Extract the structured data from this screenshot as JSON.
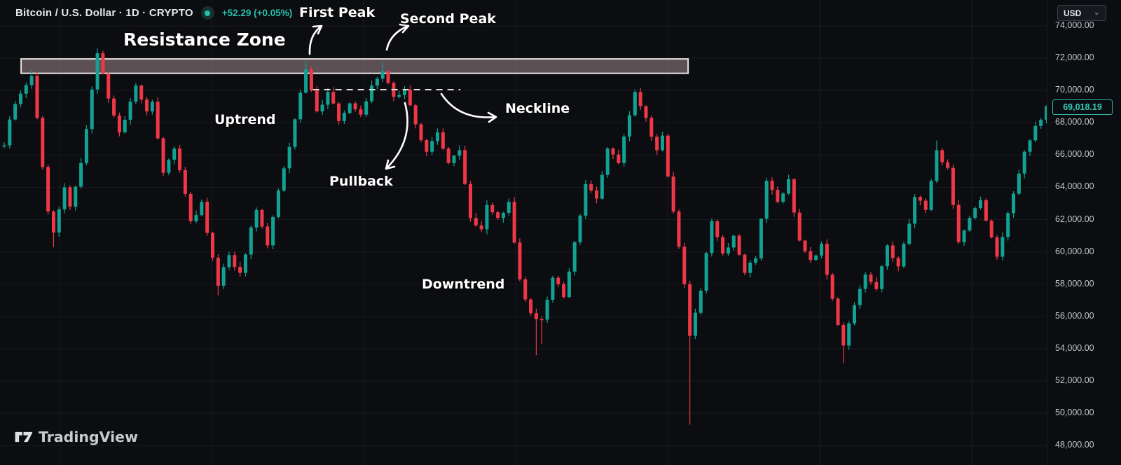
{
  "header": {
    "symbol_title": "Bitcoin / U.S. Dollar · 1D · CRYPTO",
    "change_text": "+52.29 (+0.05%)",
    "status_icon": "live-dot-icon"
  },
  "currency_selector": {
    "value": "USD",
    "caret": "⌄"
  },
  "watermark": {
    "brand": "TradingView"
  },
  "price_axis": {
    "labels": [
      "74,000.00",
      "72,000.00",
      "70,000.00",
      "68,000.00",
      "66,000.00",
      "64,000.00",
      "62,000.00",
      "60,000.00",
      "58,000.00",
      "56,000.00",
      "54,000.00",
      "52,000.00",
      "50,000.00",
      "48,000.00"
    ],
    "current_price_label": "69,018.19"
  },
  "annotations": {
    "resistance_zone": "Resistance Zone",
    "first_peak": "First Peak",
    "second_peak": "Second Peak",
    "uptrend": "Uptrend",
    "pullback": "Pullback",
    "neckline": "Neckline",
    "downtrend": "Downtrend"
  },
  "colors": {
    "background": "#0c0d10",
    "up": "#12a192",
    "down": "#ef3847",
    "accent": "#28c0ae",
    "grid": "rgba(255,255,255,0.055)",
    "zone_fill": "rgba(205,175,180,0.42)",
    "zone_border": "rgba(242,237,237,0.95)",
    "neckline_dash": "#e8dddd",
    "axis_text": "#c3c6cb"
  },
  "chart_data": {
    "type": "candlestick",
    "symbol": "Bitcoin / U.S. Dollar",
    "timeframe": "1D",
    "exchange": "CRYPTO",
    "last_close": 69018.19,
    "change_abs": 52.29,
    "change_pct": 0.05,
    "ylim": [
      46800,
      75600
    ],
    "y_ticks": [
      74000,
      72000,
      70000,
      68000,
      66000,
      64000,
      62000,
      60000,
      58000,
      56000,
      54000,
      52000,
      50000,
      48000
    ],
    "candle_count": 191,
    "resistance_zone": {
      "start_index": 3.4,
      "end_index": 125,
      "price_top": 71950,
      "price_bottom": 71060
    },
    "neckline": {
      "start_index": 56.6,
      "end_index": 83.5,
      "price": 70050
    },
    "seed": 11,
    "noise_amplitude": 450,
    "price_path_anchors": [
      [
        0,
        66600
      ],
      [
        1,
        68200
      ],
      [
        3,
        69800
      ],
      [
        5,
        70900
      ],
      [
        6,
        68300
      ],
      [
        8,
        62500
      ],
      [
        9,
        61200
      ],
      [
        11,
        64000
      ],
      [
        12,
        62800
      ],
      [
        14,
        65500
      ],
      [
        17,
        72300
      ],
      [
        19,
        69500
      ],
      [
        21,
        67400
      ],
      [
        24,
        70300
      ],
      [
        26,
        68700
      ],
      [
        27,
        69300
      ],
      [
        29,
        64900
      ],
      [
        31,
        66400
      ],
      [
        34,
        61900
      ],
      [
        36,
        63100
      ],
      [
        39,
        57900
      ],
      [
        41,
        59800
      ],
      [
        43,
        58700
      ],
      [
        46,
        62600
      ],
      [
        48,
        60400
      ],
      [
        50,
        63800
      ],
      [
        52,
        66500
      ],
      [
        55,
        71300
      ],
      [
        57,
        68700
      ],
      [
        59,
        69900
      ],
      [
        61,
        68100
      ],
      [
        63,
        69200
      ],
      [
        65,
        68500
      ],
      [
        67,
        70300
      ],
      [
        69,
        71200
      ],
      [
        71,
        69600
      ],
      [
        73,
        70050
      ],
      [
        75,
        67900
      ],
      [
        77,
        66200
      ],
      [
        79,
        67400
      ],
      [
        81,
        65500
      ],
      [
        83,
        66300
      ],
      [
        85,
        62100
      ],
      [
        87,
        61400
      ],
      [
        88,
        62900
      ],
      [
        90,
        62100
      ],
      [
        92,
        63100
      ],
      [
        94,
        58300
      ],
      [
        96,
        56200
      ],
      [
        98,
        55800
      ],
      [
        100,
        58400
      ],
      [
        102,
        57200
      ],
      [
        104,
        60600
      ],
      [
        106,
        64200
      ],
      [
        108,
        63300
      ],
      [
        110,
        66400
      ],
      [
        112,
        65500
      ],
      [
        115,
        69900
      ],
      [
        117,
        68300
      ],
      [
        119,
        66300
      ],
      [
        120,
        67200
      ],
      [
        122,
        62500
      ],
      [
        124,
        58000
      ],
      [
        125,
        54800
      ],
      [
        127,
        57600
      ],
      [
        129,
        61900
      ],
      [
        131,
        59900
      ],
      [
        133,
        61000
      ],
      [
        135,
        58700
      ],
      [
        137,
        59600
      ],
      [
        139,
        64400
      ],
      [
        141,
        63100
      ],
      [
        143,
        64500
      ],
      [
        145,
        60700
      ],
      [
        147,
        59500
      ],
      [
        149,
        60500
      ],
      [
        151,
        57100
      ],
      [
        153,
        54200
      ],
      [
        155,
        56700
      ],
      [
        157,
        58600
      ],
      [
        159,
        57700
      ],
      [
        161,
        60400
      ],
      [
        163,
        59100
      ],
      [
        166,
        63400
      ],
      [
        168,
        62600
      ],
      [
        170,
        66300
      ],
      [
        172,
        65200
      ],
      [
        174,
        60600
      ],
      [
        176,
        62100
      ],
      [
        178,
        63200
      ],
      [
        180,
        60900
      ],
      [
        181,
        59700
      ],
      [
        184,
        63600
      ],
      [
        186,
        66200
      ],
      [
        188,
        67800
      ],
      [
        190,
        69018.19
      ]
    ],
    "special_wicks": [
      [
        5,
        "high",
        71250
      ],
      [
        9,
        "low",
        60300
      ],
      [
        17,
        "high",
        72600
      ],
      [
        39,
        "low",
        57300
      ],
      [
        55,
        "high",
        71800
      ],
      [
        69,
        "high",
        71750
      ],
      [
        97,
        "low",
        53600
      ],
      [
        98,
        "low",
        54300
      ],
      [
        115,
        "high",
        70060
      ],
      [
        125,
        "low",
        49300
      ],
      [
        153,
        "low",
        53100
      ],
      [
        170,
        "high",
        66900
      ]
    ]
  }
}
